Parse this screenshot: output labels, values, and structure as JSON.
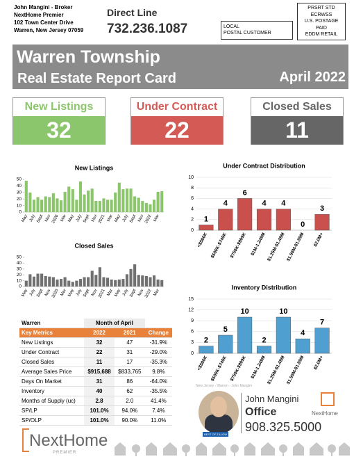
{
  "header": {
    "agent_lines": [
      "John Mangini - Broker",
      "NextHome Premier",
      "102 Town Center Drive",
      "Warren, New Jersey 07059"
    ],
    "direct_label": "Direct Line",
    "direct_phone": "732.236.1087",
    "postal_lines": [
      "LOCAL",
      "POSTAL CUSTOMER"
    ],
    "postage_lines": [
      "PRSRT STD",
      "ECRWSS",
      "U.S. POSTAGE",
      "PAID",
      "EDDM RETAIL"
    ]
  },
  "banner": {
    "title": "Warren Township",
    "subtitle": "Real Estate Report Card",
    "date": "April 2022"
  },
  "kpis": [
    {
      "label": "New Listings",
      "value": 32,
      "color": "#8cc66c"
    },
    {
      "label": "Under Contract",
      "value": 22,
      "color": "#d45a56"
    },
    {
      "label": "Closed Sales",
      "value": 11,
      "color": "#666666"
    }
  ],
  "chart_data": [
    {
      "type": "bar",
      "title": "New Listings",
      "color": "#8cc66c",
      "grid": false,
      "data_labels": false,
      "categories": [
        "May",
        null,
        "July",
        null,
        "Sept",
        null,
        "Nov",
        null,
        "2020",
        null,
        "Mar",
        null,
        "May",
        null,
        "July",
        null,
        "Sept",
        null,
        "Nov",
        null,
        "2021",
        null,
        "Mar",
        null,
        "May",
        null,
        "July",
        null,
        "Sept",
        null,
        "Nov",
        null,
        "2022",
        null,
        "Mar",
        null
      ],
      "values": [
        48,
        30,
        19,
        23,
        19,
        24,
        23,
        29,
        21,
        18,
        31,
        39,
        35,
        19,
        47,
        27,
        33,
        36,
        17,
        17,
        21,
        19,
        19,
        30,
        45,
        35,
        36,
        36,
        24,
        22,
        17,
        14,
        12,
        19,
        31,
        32
      ],
      "ylim": [
        0,
        50
      ],
      "yticks": [
        0,
        10,
        20,
        30,
        40,
        50
      ]
    },
    {
      "type": "bar",
      "title": "Closed Sales",
      "color": "#707070",
      "grid": false,
      "data_labels": false,
      "categories": [
        "May",
        null,
        "July",
        null,
        "Sept",
        null,
        "Nov",
        null,
        "2020",
        null,
        "Mar",
        null,
        "May",
        null,
        "July",
        null,
        "Sept",
        null,
        "Nov",
        null,
        "2021",
        null,
        "Mar",
        null,
        "May",
        null,
        "July",
        null,
        "Sept",
        null,
        "Nov",
        null,
        "2022",
        null,
        "Mar",
        null
      ],
      "values": [
        10,
        21,
        17,
        22,
        22,
        18,
        17,
        16,
        12,
        13,
        16,
        10,
        8,
        10,
        13,
        16,
        16,
        27,
        20,
        33,
        16,
        15,
        12,
        11,
        12,
        13,
        21,
        30,
        38,
        20,
        19,
        18,
        16,
        19,
        12,
        11
      ],
      "ylim": [
        0,
        50
      ],
      "yticks": [
        0,
        10,
        20,
        30,
        40,
        50
      ]
    },
    {
      "type": "bar",
      "title": "Under Contract Distribution",
      "color": "#c9504d",
      "grid": true,
      "data_labels": true,
      "categories": [
        "<$500K",
        "$500K-$749K",
        "$750K-$999K",
        "$1M-1.249M",
        "$1.25M-$1.49M",
        "$1.50M-$1.99M",
        "$2.0M+"
      ],
      "values": [
        1,
        4,
        6,
        4,
        4,
        0,
        3
      ],
      "ylim": [
        0,
        10
      ],
      "yticks": [
        0,
        2,
        4,
        6,
        8,
        10
      ]
    },
    {
      "type": "bar",
      "title": "Inventory Distribution",
      "color": "#4f9fd1",
      "grid": true,
      "data_labels": true,
      "categories": [
        "<$500K",
        "$500K-$749K",
        "$750K-$999K",
        "$1M-1.249M",
        "$1.25M-$1.49M",
        "$1.50M-$1.99M",
        "$2.0M+"
      ],
      "values": [
        2,
        5,
        10,
        2,
        10,
        4,
        7
      ],
      "ylim": [
        0,
        15
      ],
      "yticks": [
        0,
        3,
        6,
        9,
        12,
        15
      ]
    }
  ],
  "table": {
    "title": "Warren",
    "period": "Month of April",
    "columns": [
      "Key Metrics",
      "2022",
      "2021",
      "Change"
    ],
    "rows": [
      [
        "New Listings",
        "32",
        "47",
        "-31.9%"
      ],
      [
        "Under Contract",
        "22",
        "31",
        "-29.0%"
      ],
      [
        "Closed Sales",
        "11",
        "17",
        "-35.3%"
      ],
      [
        "Average Sales Price",
        "$915,688",
        "$833,765",
        "9.8%"
      ],
      [
        "Days On Market",
        "31",
        "86",
        "-64.0%"
      ],
      [
        "Inventory",
        "40",
        "62",
        "-35.5%"
      ],
      [
        "Months of Supply (uc)",
        "2.8",
        "2.0",
        "41.4%"
      ],
      [
        "SP/LP",
        "101.0%",
        "94.0%",
        "7.4%"
      ],
      [
        "SP/OLP",
        "101.0%",
        "90.0%",
        "11.0%"
      ]
    ]
  },
  "agent": {
    "note": "New Jersey - Warren - John Mangini",
    "name": "John Mangini",
    "role": "Office",
    "phone": "908.325.5000",
    "brand": "NextHome",
    "badge": "BEST OF ZILLOW"
  },
  "footer": {
    "logo": "NextHome",
    "logo_sub": "PREMIER"
  }
}
